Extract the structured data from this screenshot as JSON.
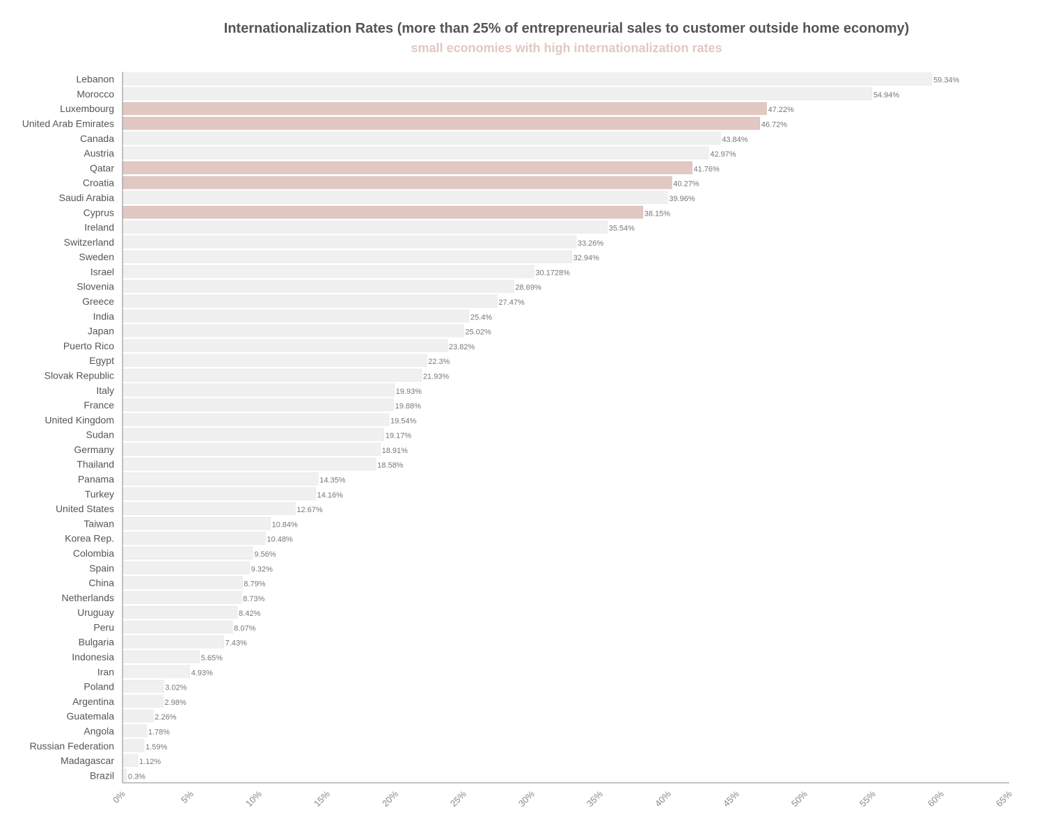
{
  "chart_data": {
    "type": "bar",
    "orientation": "horizontal",
    "title": "Internationalization Rates (more than 25% of entrepreneurial sales to customer outside home economy)",
    "subtitle": "small economies with high internationalization rates",
    "xlim": [
      0,
      65
    ],
    "x_ticks": [
      "0%",
      "5%",
      "10%",
      "15%",
      "20%",
      "25%",
      "30%",
      "35%",
      "40%",
      "45%",
      "50%",
      "55%",
      "60%",
      "65%"
    ],
    "colors": {
      "default": "#f0f0f0",
      "highlight": "#e2c8c2",
      "title": "#555555",
      "subtitle": "#e2c8c2"
    },
    "bars": [
      {
        "country": "Lebanon",
        "value": 59.34,
        "label": "59.34%",
        "highlight": false
      },
      {
        "country": "Morocco",
        "value": 54.94,
        "label": "54.94%",
        "highlight": false
      },
      {
        "country": "Luxembourg",
        "value": 47.22,
        "label": "47.22%",
        "highlight": true
      },
      {
        "country": "United Arab Emirates",
        "value": 46.72,
        "label": "46.72%",
        "highlight": true
      },
      {
        "country": "Canada",
        "value": 43.84,
        "label": "43.84%",
        "highlight": false
      },
      {
        "country": "Austria",
        "value": 42.97,
        "label": "42.97%",
        "highlight": false
      },
      {
        "country": "Qatar",
        "value": 41.76,
        "label": "41.76%",
        "highlight": true
      },
      {
        "country": "Croatia",
        "value": 40.27,
        "label": "40.27%",
        "highlight": true
      },
      {
        "country": "Saudi Arabia",
        "value": 39.96,
        "label": "39.96%",
        "highlight": false
      },
      {
        "country": "Cyprus",
        "value": 38.15,
        "label": "38.15%",
        "highlight": true
      },
      {
        "country": "Ireland",
        "value": 35.54,
        "label": "35.54%",
        "highlight": false
      },
      {
        "country": "Switzerland",
        "value": 33.26,
        "label": "33.26%",
        "highlight": false
      },
      {
        "country": "Sweden",
        "value": 32.94,
        "label": "32.94%",
        "highlight": false
      },
      {
        "country": "Israel",
        "value": 30.1728,
        "label": "30.1728%",
        "highlight": false
      },
      {
        "country": "Slovenia",
        "value": 28.69,
        "label": "28.69%",
        "highlight": false
      },
      {
        "country": "Greece",
        "value": 27.47,
        "label": "27.47%",
        "highlight": false
      },
      {
        "country": "India",
        "value": 25.4,
        "label": "25.4%",
        "highlight": false
      },
      {
        "country": "Japan",
        "value": 25.02,
        "label": "25.02%",
        "highlight": false
      },
      {
        "country": "Puerto Rico",
        "value": 23.82,
        "label": "23.82%",
        "highlight": false
      },
      {
        "country": "Egypt",
        "value": 22.3,
        "label": "22.3%",
        "highlight": false
      },
      {
        "country": "Slovak Republic",
        "value": 21.93,
        "label": "21.93%",
        "highlight": false
      },
      {
        "country": "Italy",
        "value": 19.93,
        "label": "19.93%",
        "highlight": false
      },
      {
        "country": "France",
        "value": 19.88,
        "label": "19.88%",
        "highlight": false
      },
      {
        "country": "United Kingdom",
        "value": 19.54,
        "label": "19.54%",
        "highlight": false
      },
      {
        "country": "Sudan",
        "value": 19.17,
        "label": "19.17%",
        "highlight": false
      },
      {
        "country": "Germany",
        "value": 18.91,
        "label": "18.91%",
        "highlight": false
      },
      {
        "country": "Thailand",
        "value": 18.58,
        "label": "18.58%",
        "highlight": false
      },
      {
        "country": "Panama",
        "value": 14.35,
        "label": "14.35%",
        "highlight": false
      },
      {
        "country": "Turkey",
        "value": 14.16,
        "label": "14.16%",
        "highlight": false
      },
      {
        "country": "United States",
        "value": 12.67,
        "label": "12.67%",
        "highlight": false
      },
      {
        "country": "Taiwan",
        "value": 10.84,
        "label": "10.84%",
        "highlight": false
      },
      {
        "country": "Korea Rep.",
        "value": 10.48,
        "label": "10.48%",
        "highlight": false
      },
      {
        "country": "Colombia",
        "value": 9.56,
        "label": "9.56%",
        "highlight": false
      },
      {
        "country": "Spain",
        "value": 9.32,
        "label": "9.32%",
        "highlight": false
      },
      {
        "country": "China",
        "value": 8.79,
        "label": "8.79%",
        "highlight": false
      },
      {
        "country": "Netherlands",
        "value": 8.73,
        "label": "8.73%",
        "highlight": false
      },
      {
        "country": "Uruguay",
        "value": 8.42,
        "label": "8.42%",
        "highlight": false
      },
      {
        "country": "Peru",
        "value": 8.07,
        "label": "8.07%",
        "highlight": false
      },
      {
        "country": "Bulgaria",
        "value": 7.43,
        "label": "7.43%",
        "highlight": false
      },
      {
        "country": "Indonesia",
        "value": 5.65,
        "label": "5.65%",
        "highlight": false
      },
      {
        "country": "Iran",
        "value": 4.93,
        "label": "4.93%",
        "highlight": false
      },
      {
        "country": "Poland",
        "value": 3.02,
        "label": "3.02%",
        "highlight": false
      },
      {
        "country": "Argentina",
        "value": 2.98,
        "label": "2.98%",
        "highlight": false
      },
      {
        "country": "Guatemala",
        "value": 2.26,
        "label": "2.26%",
        "highlight": false
      },
      {
        "country": "Angola",
        "value": 1.78,
        "label": "1.78%",
        "highlight": false
      },
      {
        "country": "Russian Federation",
        "value": 1.59,
        "label": "1.59%",
        "highlight": false
      },
      {
        "country": "Madagascar",
        "value": 1.12,
        "label": "1.12%",
        "highlight": false
      },
      {
        "country": "Brazil",
        "value": 0.3,
        "label": "0.3%",
        "highlight": false
      }
    ]
  }
}
